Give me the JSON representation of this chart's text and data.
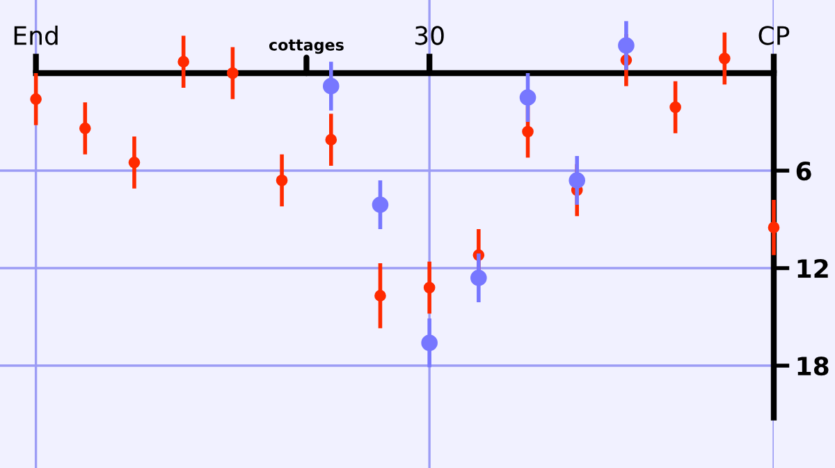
{
  "chart_data": {
    "type": "scatter",
    "categories": [
      "End",
      null,
      null,
      null,
      null,
      null,
      null,
      null,
      "30",
      null,
      null,
      null,
      null,
      null,
      null,
      "CP"
    ],
    "ylim": [
      24.3,
      -4.5
    ],
    "yticks": [
      6,
      12,
      18
    ],
    "grid": true,
    "marker": "circle",
    "annotations": [
      "cottages"
    ],
    "series": [
      {
        "color": "#ff2a00",
        "values": [
          1.6,
          3.4,
          5.5,
          -0.7,
          0,
          6.6,
          4.1,
          13.7,
          13.2,
          11.2,
          3.6,
          7.2,
          -0.8,
          2.1,
          -0.9,
          9.5
        ],
        "errors": [
          1.6,
          1.6,
          1.6,
          1.6,
          1.6,
          1.6,
          1.6,
          2.0,
          1.6,
          1.6,
          1.6,
          1.6,
          1.6,
          1.6,
          1.6,
          1.7
        ]
      },
      {
        "color": "#7777ff",
        "values": [
          null,
          null,
          null,
          null,
          null,
          null,
          0.8,
          8.1,
          16.6,
          12.6,
          1.5,
          6.6,
          -1.7,
          null,
          null,
          null
        ],
        "errors": [
          null,
          null,
          null,
          null,
          null,
          null,
          1.5,
          1.5,
          1.5,
          1.5,
          1.5,
          1.5,
          1.5,
          null,
          null,
          null
        ]
      }
    ]
  }
}
